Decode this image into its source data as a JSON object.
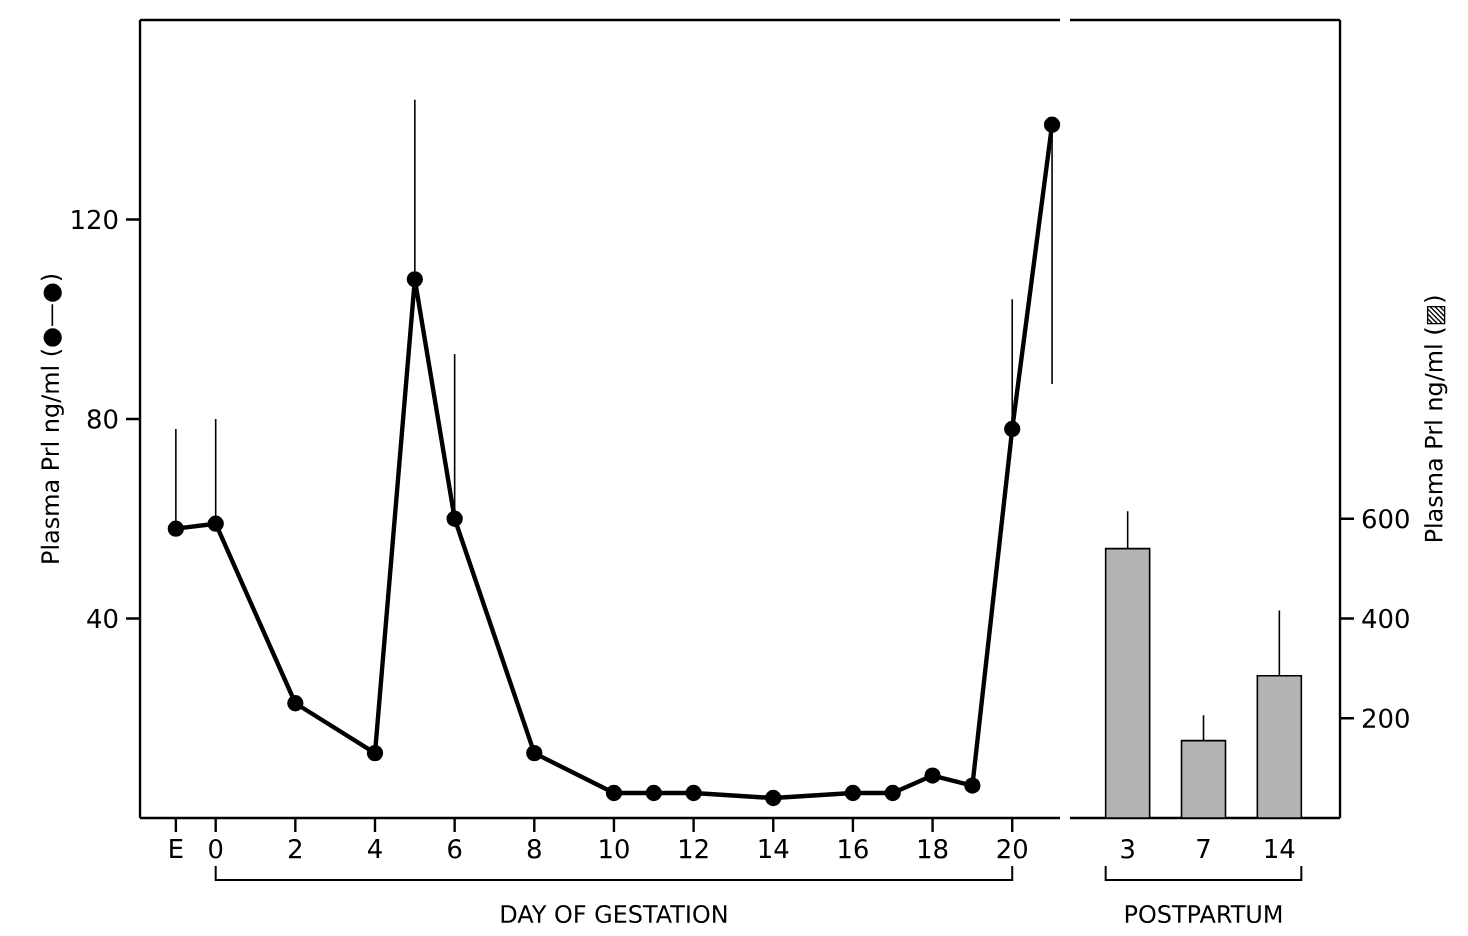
{
  "chart_data": [
    {
      "type": "line",
      "xlabel": "DAY OF GESTATION",
      "ylabel": "Plasma Prl ng/ml (●—●)",
      "x": [
        -1,
        0,
        2,
        4,
        5,
        6,
        8,
        10,
        11,
        12,
        14,
        16,
        17,
        18,
        19,
        20,
        21
      ],
      "values": [
        58,
        59,
        23,
        13,
        108,
        60,
        13,
        5,
        5,
        5,
        4,
        5,
        5,
        8.5,
        6.5,
        78,
        139
      ],
      "errors": [
        [
          58,
          78
        ],
        [
          59,
          80
        ],
        null,
        null,
        [
          108,
          144
        ],
        [
          60,
          93
        ],
        null,
        null,
        null,
        null,
        null,
        null,
        null,
        null,
        null,
        [
          78,
          104
        ],
        [
          87,
          139
        ]
      ],
      "color": "#000000",
      "marker": "circle",
      "xlim": [
        -1.9,
        21.2
      ],
      "xticks": [
        {
          "value": -1,
          "label": "E"
        },
        0,
        2,
        4,
        6,
        8,
        10,
        12,
        14,
        16,
        18,
        20
      ],
      "ylim": [
        0,
        160
      ],
      "yticks": [
        40,
        80,
        120
      ]
    },
    {
      "type": "bar",
      "xlabel": "POSTPARTUM",
      "y2label": "Plasma Prl ng/ml (▨)",
      "categories": [
        "3",
        "7",
        "14"
      ],
      "series": [
        {
          "values": [
            540,
            155,
            285
          ],
          "errors": [
            [
              540,
              615
            ],
            [
              155,
              206
            ],
            [
              285,
              416
            ]
          ],
          "color": "#b4b4b4",
          "axis": "y2"
        }
      ],
      "y2lim": [
        0,
        1600
      ],
      "y2ticks": [
        200,
        400,
        600
      ]
    }
  ]
}
